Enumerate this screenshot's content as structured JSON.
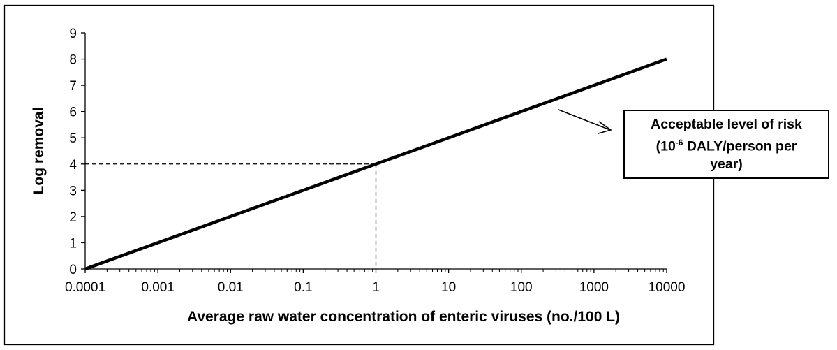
{
  "chart_data": {
    "type": "line",
    "title": "",
    "xlabel": "Average raw water concentration of enteric viruses (no./100 L)",
    "ylabel": "Log removal",
    "xscale": "log",
    "xlim": [
      0.0001,
      10000
    ],
    "ylim": [
      0,
      9
    ],
    "x_ticks": [
      "0.0001",
      "0.001",
      "0.01",
      "0.1",
      "1",
      "10",
      "100",
      "1000",
      "10000"
    ],
    "y_ticks": [
      "0",
      "1",
      "2",
      "3",
      "4",
      "5",
      "6",
      "7",
      "8",
      "9"
    ],
    "grid": false,
    "series": [
      {
        "x": [
          0.0001,
          10000
        ],
        "y": [
          0,
          8
        ],
        "color": "#000000"
      }
    ],
    "reference_lines": [
      {
        "style": "dashed",
        "x": 1,
        "y": 4
      }
    ],
    "annotation": {
      "line1": "Acceptable level of risk",
      "line2_prefix": "(10",
      "line2_sup": "-6",
      "line2_suffix": " DALY/person per",
      "line3": "year)"
    }
  }
}
